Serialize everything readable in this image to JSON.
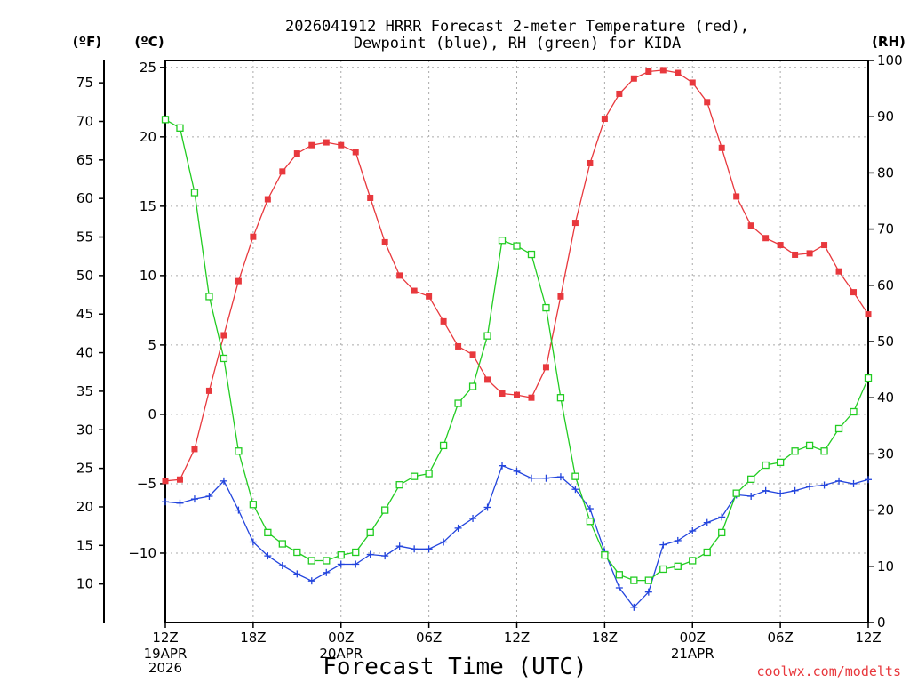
{
  "colors": {
    "temperature": "#e8383d",
    "dewpoint": "#2244dd",
    "rh": "#22cc22",
    "credit": "#e8383d"
  },
  "chart_data": {
    "type": "line",
    "title": "2026041912 HRRR Forecast 2-meter Temperature (red),",
    "subtitle": "Dewpoint (blue), RH (green) for KIDA",
    "xlabel": "Forecast Time (UTC)",
    "credit": "coolwx.com/modelts",
    "units": {
      "fahrenheit": "(ºF)",
      "celsius": "(ºC)",
      "rh": "(RH)"
    },
    "grid": true,
    "x_hours": [
      0,
      1,
      2,
      3,
      4,
      5,
      6,
      7,
      8,
      9,
      10,
      11,
      12,
      13,
      14,
      15,
      16,
      17,
      18,
      19,
      20,
      21,
      22,
      23,
      24,
      25,
      26,
      27,
      28,
      29,
      30,
      31,
      32,
      33,
      34,
      35,
      36,
      37,
      38,
      39,
      40,
      41,
      42,
      43,
      44,
      45,
      46,
      47,
      48
    ],
    "xlim": [
      0,
      48
    ],
    "x_ticks": [
      {
        "hour": 0,
        "label": "12Z",
        "date": [
          "19APR",
          "2026"
        ]
      },
      {
        "hour": 6,
        "label": "18Z",
        "date": []
      },
      {
        "hour": 12,
        "label": "00Z",
        "date": [
          "20APR"
        ]
      },
      {
        "hour": 18,
        "label": "06Z",
        "date": []
      },
      {
        "hour": 24,
        "label": "12Z",
        "date": []
      },
      {
        "hour": 30,
        "label": "18Z",
        "date": []
      },
      {
        "hour": 36,
        "label": "00Z",
        "date": [
          "21APR"
        ]
      },
      {
        "hour": 42,
        "label": "06Z",
        "date": []
      },
      {
        "hour": 48,
        "label": "12Z",
        "date": []
      }
    ],
    "y_celsius": {
      "ylim": [
        -15,
        25.5
      ],
      "ticks": [
        25,
        20,
        15,
        10,
        5,
        0,
        -5,
        -10
      ],
      "labels": [
        "25",
        "20",
        "15",
        "10",
        "5",
        "0",
        "−5",
        "−10"
      ]
    },
    "y_fahrenheit": {
      "ticks": [
        75,
        70,
        65,
        60,
        55,
        50,
        45,
        40,
        35,
        30,
        25,
        20,
        15,
        10
      ],
      "labels": [
        "75",
        "70",
        "65",
        "60",
        "55",
        "50",
        "45",
        "40",
        "35",
        "30",
        "25",
        "20",
        "15",
        "10"
      ]
    },
    "y_rh": {
      "ylim": [
        0,
        100
      ],
      "ticks": [
        100,
        90,
        80,
        70,
        60,
        50,
        40,
        30,
        20,
        10,
        0
      ],
      "labels": [
        "100",
        "90",
        "80",
        "70",
        "60",
        "50",
        "40",
        "30",
        "20",
        "10",
        "0"
      ]
    },
    "series": [
      {
        "name": "Temperature",
        "axis": "celsius",
        "marker": "filled-square",
        "values": [
          -4.8,
          -4.7,
          -2.5,
          1.7,
          5.7,
          9.6,
          12.8,
          15.5,
          17.5,
          18.8,
          19.4,
          19.6,
          19.4,
          18.9,
          15.6,
          12.4,
          10.0,
          8.9,
          8.5,
          6.7,
          4.9,
          4.3,
          2.5,
          1.5,
          1.4,
          1.2,
          3.4,
          8.5,
          13.8,
          18.1,
          21.3,
          23.1,
          24.2,
          24.7,
          24.8,
          24.6,
          23.9,
          22.5,
          19.2,
          15.7,
          13.6,
          12.7,
          12.2,
          11.5,
          11.6,
          12.2,
          10.3,
          8.8,
          7.2
        ]
      },
      {
        "name": "Dewpoint",
        "axis": "celsius",
        "marker": "plus",
        "values": [
          -6.3,
          -6.4,
          -6.1,
          -5.9,
          -4.8,
          -6.9,
          -9.2,
          -10.2,
          -10.9,
          -11.5,
          -12.0,
          -11.4,
          -10.8,
          -10.8,
          -10.1,
          -10.2,
          -9.5,
          -9.7,
          -9.7,
          -9.2,
          -8.2,
          -7.5,
          -6.7,
          -3.7,
          -4.1,
          -4.6,
          -4.6,
          -4.5,
          -5.4,
          -6.8,
          -9.9,
          -12.5,
          -13.9,
          -12.8,
          -9.4,
          -9.1,
          -8.4,
          -7.8,
          -7.4,
          -5.8,
          -5.9,
          -5.5,
          -5.7,
          -5.5,
          -5.2,
          -5.1,
          -4.8,
          -5.0,
          -4.7
        ]
      },
      {
        "name": "RH",
        "axis": "rh",
        "marker": "open-square",
        "values": [
          89.5,
          88,
          76.5,
          58,
          47,
          30.5,
          21,
          16,
          14,
          12.5,
          11,
          11,
          12,
          12.5,
          16,
          20,
          24.5,
          26,
          26.5,
          31.5,
          39,
          42,
          51,
          68,
          67,
          65.5,
          56,
          40,
          26,
          18,
          12,
          8.5,
          7.5,
          7.5,
          9.5,
          10,
          11,
          12.5,
          16,
          23,
          25.5,
          28,
          28.5,
          30.5,
          31.5,
          30.5,
          34.5,
          37.5,
          43.5
        ]
      }
    ]
  }
}
